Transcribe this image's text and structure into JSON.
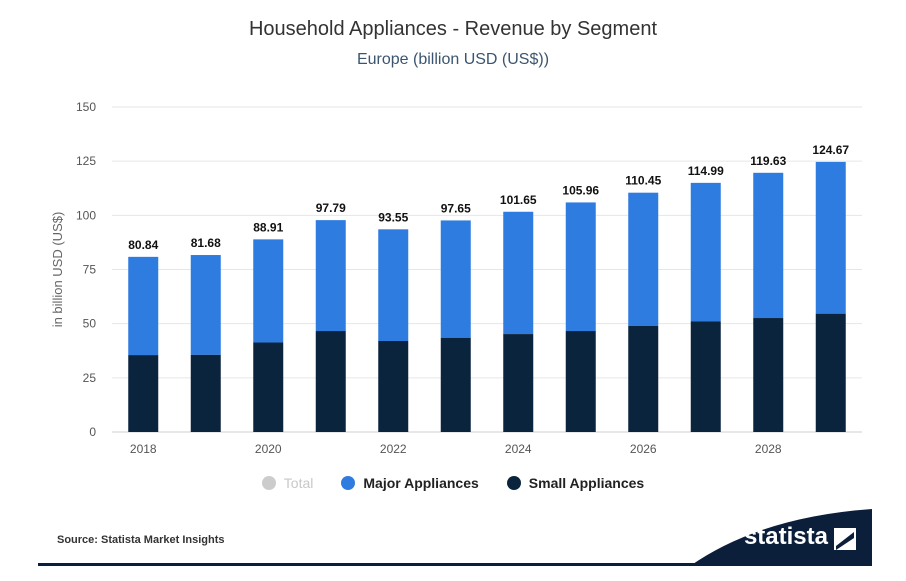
{
  "title": "Household Appliances - Revenue by Segment",
  "subtitle": "Europe (billion USD (US$))",
  "source": "Source: Statista Market Insights",
  "brand": "statista",
  "colors": {
    "major": "#2f7ce0",
    "small": "#0b243d",
    "total": "#cccccc",
    "grid": "#e6e6e6",
    "brand_dark": "#0b1f3a"
  },
  "legend": [
    {
      "label": "Total",
      "color": "#cccccc",
      "dimmed": true
    },
    {
      "label": "Major Appliances",
      "color": "#2f7ce0",
      "dimmed": false
    },
    {
      "label": "Small Appliances",
      "color": "#0b243d",
      "dimmed": false
    }
  ],
  "chart_data": {
    "type": "bar",
    "stacked": true,
    "x": [
      2018,
      2019,
      2020,
      2021,
      2022,
      2023,
      2024,
      2025,
      2026,
      2027,
      2028,
      2029
    ],
    "x_tick_labels": [
      "2018",
      "2020",
      "2022",
      "2024",
      "2026",
      "2028"
    ],
    "ylabel": "in billion USD (US$)",
    "ylim": [
      0,
      150
    ],
    "yticks": [
      0,
      25,
      50,
      75,
      100,
      125,
      150
    ],
    "grid": true,
    "legend_position": "bottom",
    "series": [
      {
        "name": "Small Appliances",
        "values": [
          35.5,
          35.6,
          41.3,
          46.6,
          42.0,
          43.5,
          45.2,
          46.6,
          49.0,
          51.0,
          52.6,
          54.6
        ]
      },
      {
        "name": "Major Appliances",
        "values": [
          45.34,
          46.08,
          47.61,
          51.19,
          51.55,
          54.15,
          56.45,
          59.36,
          61.45,
          63.99,
          67.03,
          70.07
        ]
      }
    ],
    "totals": [
      80.84,
      81.68,
      88.91,
      97.79,
      93.55,
      97.65,
      101.65,
      105.96,
      110.45,
      114.99,
      119.63,
      124.67
    ],
    "total_labels": [
      "80.84",
      "81.68",
      "88.91",
      "97.79",
      "93.55",
      "97.65",
      "101.65",
      "105.96",
      "110.45",
      "114.99",
      "119.63",
      "124.67"
    ]
  }
}
